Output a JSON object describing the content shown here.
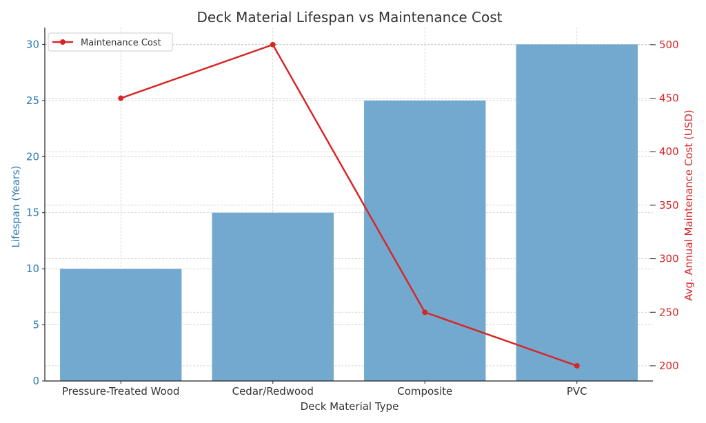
{
  "chart_data": {
    "type": "bar+line",
    "title": "Deck Material Lifespan vs Maintenance Cost",
    "xlabel": "Deck Material Type",
    "categories": [
      "Pressure-Treated Wood",
      "Cedar/Redwood",
      "Composite",
      "PVC"
    ],
    "series": [
      {
        "name": "Lifespan (Years)",
        "type": "bar",
        "axis": "left",
        "values": [
          10,
          15,
          25,
          30
        ],
        "color": "#74a9cf"
      },
      {
        "name": "Maintenance Cost",
        "type": "line",
        "axis": "right",
        "values": [
          450,
          500,
          250,
          200
        ],
        "color": "#d62728"
      }
    ],
    "y_left": {
      "label": "Lifespan (Years)",
      "ticks": [
        0,
        5,
        10,
        15,
        20,
        25,
        30
      ],
      "lim": [
        0,
        31.5
      ],
      "color": "#2a7ab5"
    },
    "y_right": {
      "label": "Avg. Annual Maintenance Cost (USD)",
      "ticks": [
        200,
        250,
        300,
        350,
        400,
        450,
        500
      ],
      "lim": [
        185.8,
        516
      ],
      "color": "#d62728"
    },
    "grid": true,
    "legend": {
      "position": "upper left",
      "entries": [
        "Maintenance Cost"
      ]
    }
  }
}
